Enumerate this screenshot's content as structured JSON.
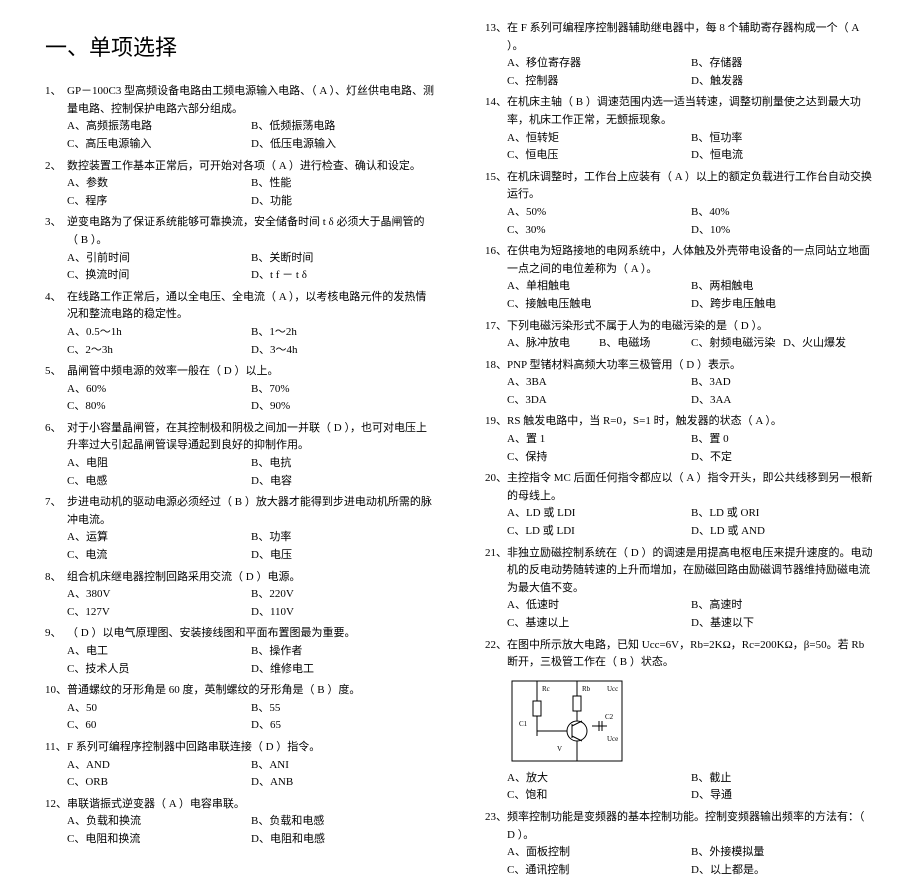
{
  "heading": "一、单项选择",
  "left": [
    {
      "n": "1、",
      "t": "GP－100C3 型高频设备电路由工频电源输入电路、（  A  ）、灯丝供电电路、测量电路、控制保护电路六部分组成。",
      "o": [
        "A、高频振荡电路",
        "B、低频振荡电路",
        "C、高压电源输入",
        "D、低压电源输入"
      ]
    },
    {
      "n": "2、",
      "t": "数控装置工作基本正常后，可开始对各项（  A  ）进行检查、确认和设定。",
      "o": [
        "A、参数",
        "B、性能",
        "C、程序",
        "D、功能"
      ]
    },
    {
      "n": "3、",
      "t": "逆变电路为了保证系统能够可靠换流，安全储备时间 t δ 必须大于晶闸管的（  B  ）。",
      "o": [
        "A、引前时间",
        "B、关断时间",
        "C、换流时间",
        "D、t f － t δ"
      ]
    },
    {
      "n": "4、",
      "t": "在线路工作正常后，通以全电压、全电流（  A  ），以考核电路元件的发热情况和整流电路的稳定性。",
      "o": [
        "A、0.5～1h",
        "B、1～2h",
        "C、2～3h",
        "D、3～4h"
      ]
    },
    {
      "n": "5、",
      "t": "晶闸管中频电源的效率一般在（  D  ）以上。",
      "o": [
        "A、60%",
        "B、70%",
        "C、80%",
        "D、90%"
      ]
    },
    {
      "n": "6、",
      "t": "对于小容量晶闸管，在其控制极和阴极之间加一并联（  D  ），也可对电压上升率过大引起晶闸管误导通起到良好的抑制作用。",
      "o": [
        "A、电阻",
        "B、电抗",
        "C、电感",
        "D、电容"
      ]
    },
    {
      "n": "7、",
      "t": "步进电动机的驱动电源必须经过（ B  ）放大器才能得到步进电动机所需的脉冲电流。",
      "o": [
        "A、运算",
        "B、功率",
        "C、电流",
        "D、电压"
      ]
    },
    {
      "n": "8、",
      "t": "组合机床继电器控制回路采用交流（  D  ）电源。",
      "o": [
        "A、380V",
        "B、220V",
        "C、127V",
        "D、110V"
      ]
    },
    {
      "n": "9、",
      "t": "（  D  ）以电气原理图、安装接线图和平面布置图最为重要。",
      "o": [
        "A、电工",
        "B、操作者",
        "C、技术人员",
        "D、维修电工"
      ]
    },
    {
      "n": "10、",
      "t": "普通螺纹的牙形角是 60 度，英制螺纹的牙形角是（  B  ）度。",
      "o": [
        "A、50",
        "B、55",
        "C、60",
        "D、65"
      ]
    },
    {
      "n": "11、",
      "t": "F 系列可编程序控制器中回路串联连接（  D  ）指令。",
      "o": [
        "A、AND",
        "B、ANI",
        "C、ORB",
        "D、ANB"
      ]
    },
    {
      "n": "12、",
      "t": "串联谐振式逆变器（  A  ）电容串联。",
      "o": [
        "A、负载和换流",
        "B、负载和电感",
        "C、电阻和换流",
        "D、电阻和电感"
      ]
    }
  ],
  "right": [
    {
      "n": "13、",
      "t": "在 F 系列可编程序控制器辅助继电器中，每 8 个辅助寄存器构成一个（  A  ）。",
      "o": [
        "A、移位寄存器",
        "B、存储器",
        "C、控制器",
        "D、触发器"
      ]
    },
    {
      "n": "14、",
      "t": "在机床主轴（  B  ）调速范围内选一适当转速，调整切削量使之达到最大功率，机床工作正常，无颤振现象。",
      "o": [
        "A、恒转矩",
        "B、恒功率",
        "C、恒电压",
        "D、恒电流"
      ]
    },
    {
      "n": "15、",
      "t": "在机床调整时，工作台上应装有（  A  ）以上的额定负载进行工作台自动交换运行。",
      "o": [
        "A、50%",
        "B、40%",
        "C、30%",
        "D、10%"
      ]
    },
    {
      "n": "16、",
      "t": "在供电为短路接地的电网系统中，人体触及外壳带电设备的一点同站立地面一点之间的电位差称为（  A  ）。",
      "o": [
        "A、单相触电",
        "B、两相触电",
        "C、接触电压触电",
        "D、跨步电压触电"
      ]
    },
    {
      "n": "17、",
      "t": "下列电磁污染形式不属于人为的电磁污染的是（  D  ）。",
      "o4": [
        "A、脉冲放电",
        "B、电磁场",
        "C、射频电磁污染",
        "D、火山爆发"
      ]
    },
    {
      "n": "18、",
      "t": "PNP 型锗材料高频大功率三极管用（  D  ）表示。",
      "o": [
        "A、3BA",
        "B、3AD",
        "C、3DA",
        "D、3AA"
      ]
    },
    {
      "n": "19、",
      "t": "RS 触发电路中，当 R=0，S=1 时，触发器的状态（  A  ）。",
      "o": [
        "A、置 1",
        "B、置 0",
        "C、保持",
        "D、不定"
      ]
    },
    {
      "n": "20、",
      "t": "主控指令 MC 后面任何指令都应以（  A  ）指令开头，即公共线移到另一根新的母线上。",
      "o": [
        "A、LD 或 LDI",
        "B、LD 或 ORI",
        "C、LD 或 LDI",
        "D、LD 或 AND"
      ]
    },
    {
      "n": "21、",
      "t": "非独立励磁控制系统在（  D  ）的调速是用提高电枢电压来提升速度的。电动机的反电动势随转速的上升而增加，在励磁回路由励磁调节器维持励磁电流为最大值不变。",
      "o": [
        "A、低速时",
        "B、高速时",
        "C、基速以上",
        "D、基速以下"
      ]
    },
    {
      "n": "22、",
      "t": "在图中所示放大电路，已知 Ucc=6V，Rb=2KΩ，Rc=200KΩ，β=50。若 Rb 断开，三极管工作在（  B  ）状态。",
      "o": [
        "A、放大",
        "B、截止",
        "C、饱和",
        "D、导通"
      ],
      "img": true
    },
    {
      "n": "23、",
      "t": "频率控制功能是变频器的基本控制功能。控制变频器输出频率的方法有：（  D  ）。",
      "o": [
        "A、面板控制",
        "B、外接模拟量",
        "C、通讯控制",
        "D、以上都是。"
      ]
    }
  ],
  "circuit": {
    "width": 120,
    "height": 90,
    "stroke": "#000",
    "labels": [
      "Rc",
      "Rb",
      "V",
      "C2",
      "C1",
      "Ucc",
      "Uce"
    ]
  }
}
